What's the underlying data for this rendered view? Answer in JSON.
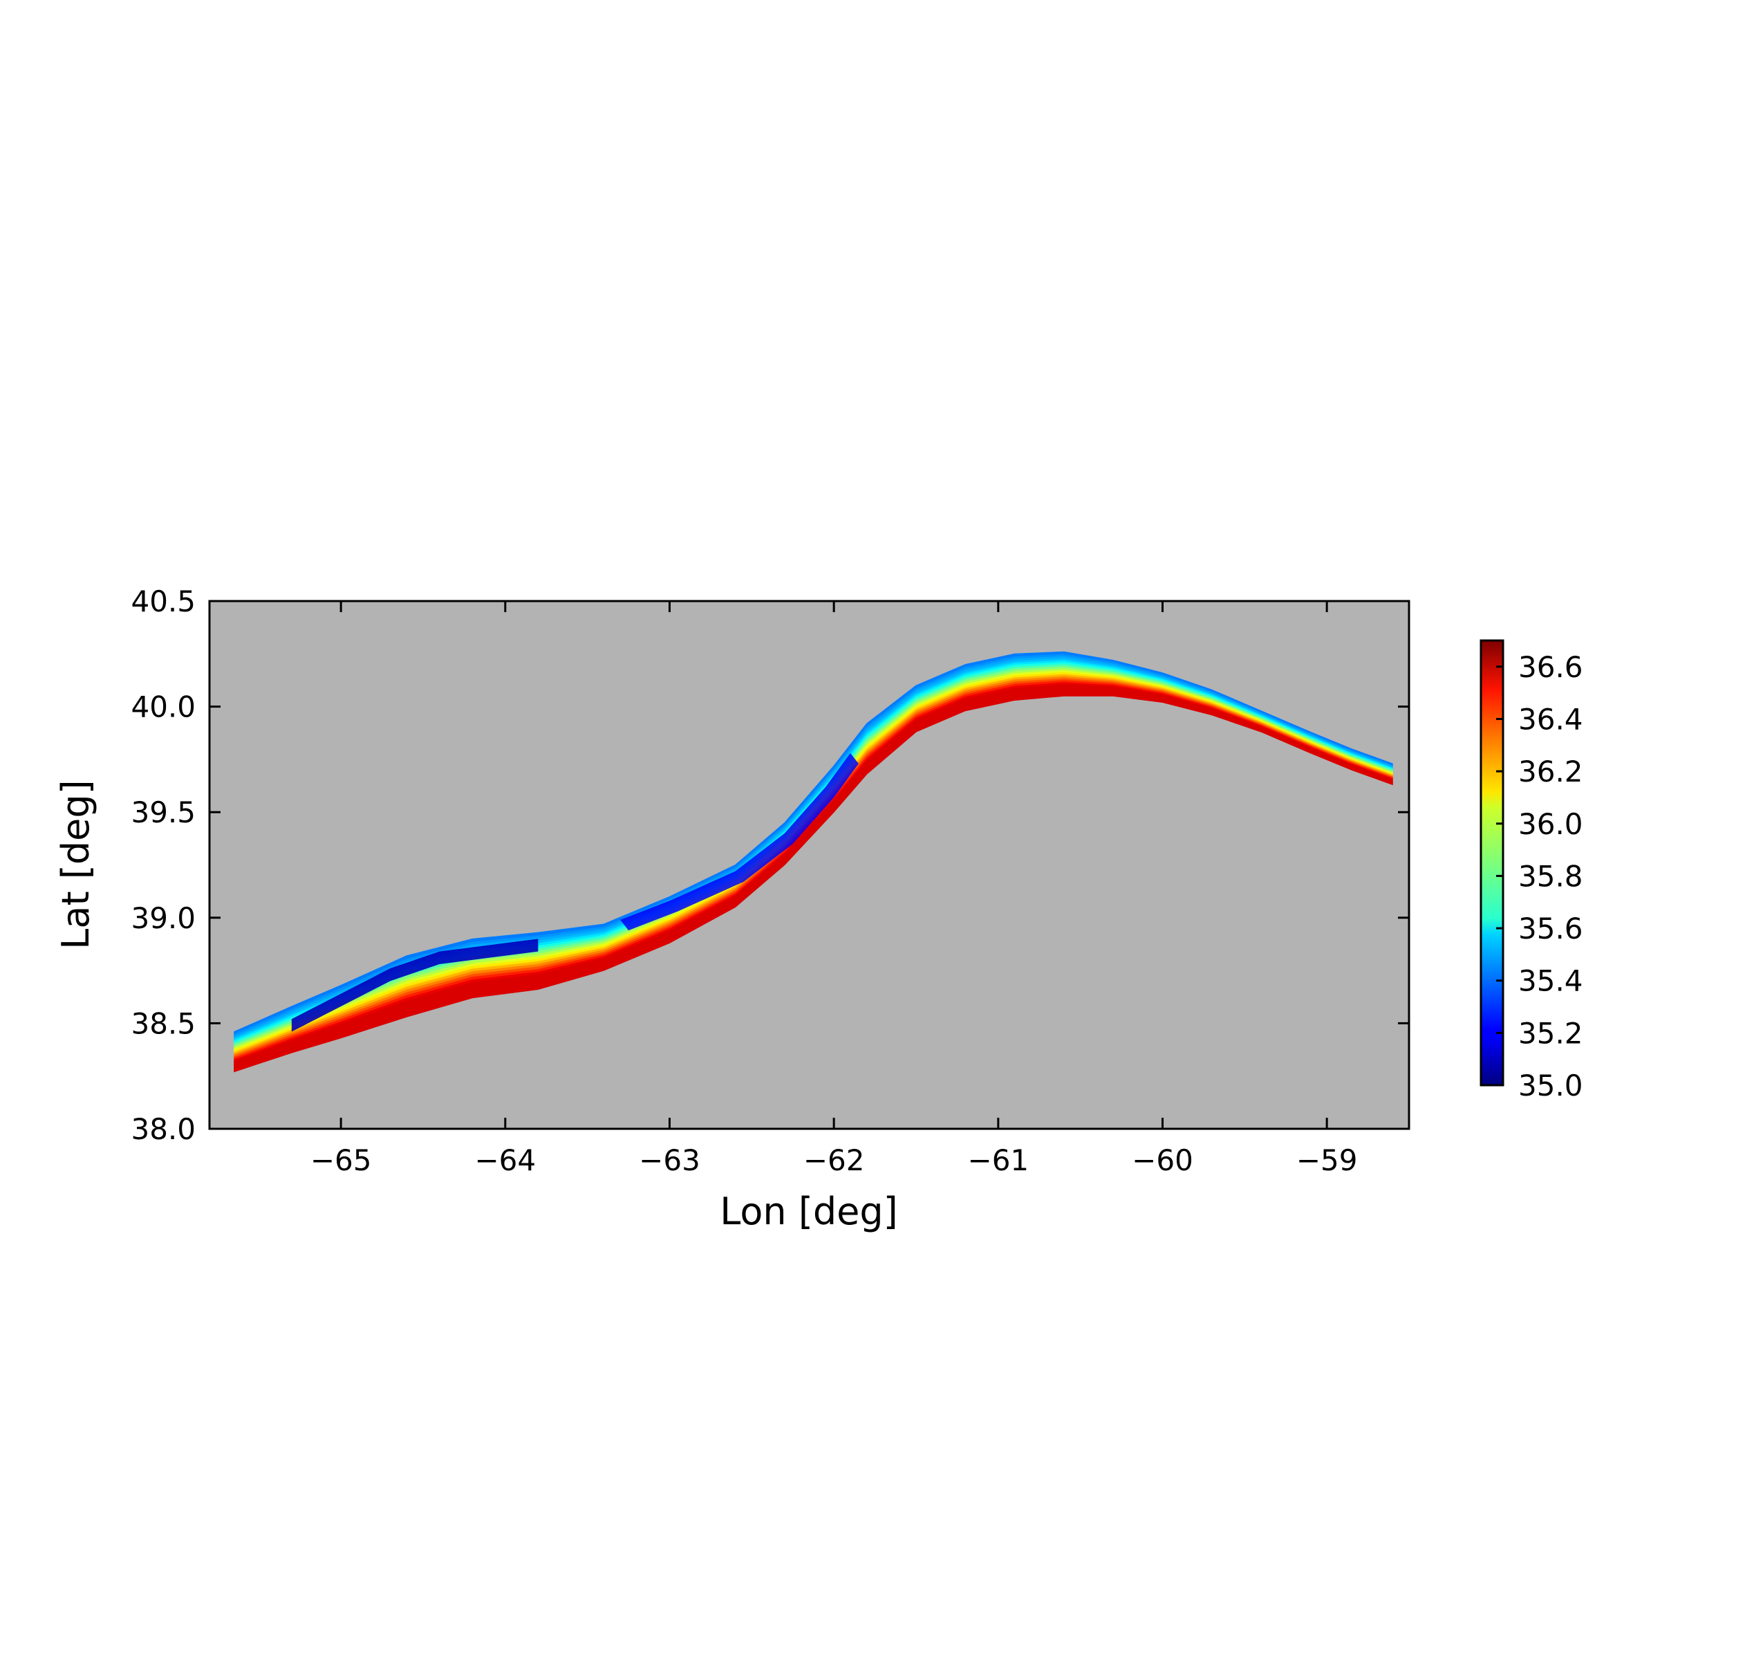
{
  "chart_data": {
    "type": "heatmap",
    "title": "",
    "xlabel": "Lon [deg]",
    "ylabel": "Lat [deg]",
    "xlim": [
      -65.8,
      -58.5
    ],
    "ylim": [
      38.0,
      40.5
    ],
    "x_ticks": [
      -65,
      -64,
      -63,
      -62,
      -61,
      -60,
      -59
    ],
    "x_tick_labels": [
      "−65",
      "−64",
      "−63",
      "−62",
      "−61",
      "−60",
      "−59"
    ],
    "y_ticks": [
      38.0,
      38.5,
      39.0,
      39.5,
      40.0,
      40.5
    ],
    "y_tick_labels": [
      "38.0",
      "38.5",
      "39.0",
      "39.5",
      "40.0",
      "40.5"
    ],
    "grid": false,
    "background_color": "#b3b3b3",
    "colormap": "jet",
    "colorbar": {
      "vmin": 35.0,
      "vmax": 36.7,
      "ticks": [
        35.0,
        35.2,
        35.4,
        35.6,
        35.8,
        36.0,
        36.2,
        36.4,
        36.6
      ],
      "tick_labels": [
        "35.0",
        "35.2",
        "35.4",
        "35.6",
        "35.8",
        "36.0",
        "36.2",
        "36.4",
        "36.6"
      ],
      "placement": "right"
    },
    "front_path": {
      "description_lon": [
        -65.65,
        -65.3,
        -65.0,
        -64.6,
        -64.2,
        -63.8,
        -63.4,
        -63.0,
        -62.6,
        -62.3,
        -62.0,
        -61.8,
        -61.5,
        -61.2,
        -60.9,
        -60.6,
        -60.3,
        -60.0,
        -59.7,
        -59.4,
        -59.1,
        -58.85,
        -58.6
      ],
      "south_lat": [
        38.27,
        38.36,
        38.43,
        38.53,
        38.62,
        38.66,
        38.75,
        38.88,
        39.05,
        39.25,
        39.5,
        39.68,
        39.88,
        39.98,
        40.03,
        40.05,
        40.05,
        40.02,
        39.96,
        39.88,
        39.78,
        39.7,
        39.63
      ],
      "north_lat": [
        38.46,
        38.58,
        38.68,
        38.82,
        38.9,
        38.93,
        38.97,
        39.1,
        39.25,
        39.45,
        39.72,
        39.92,
        40.1,
        40.2,
        40.25,
        40.26,
        40.22,
        40.16,
        40.08,
        39.98,
        39.88,
        39.8,
        39.73
      ],
      "south_value": 36.55,
      "north_value": 35.55,
      "core_value": 35.1
    }
  }
}
